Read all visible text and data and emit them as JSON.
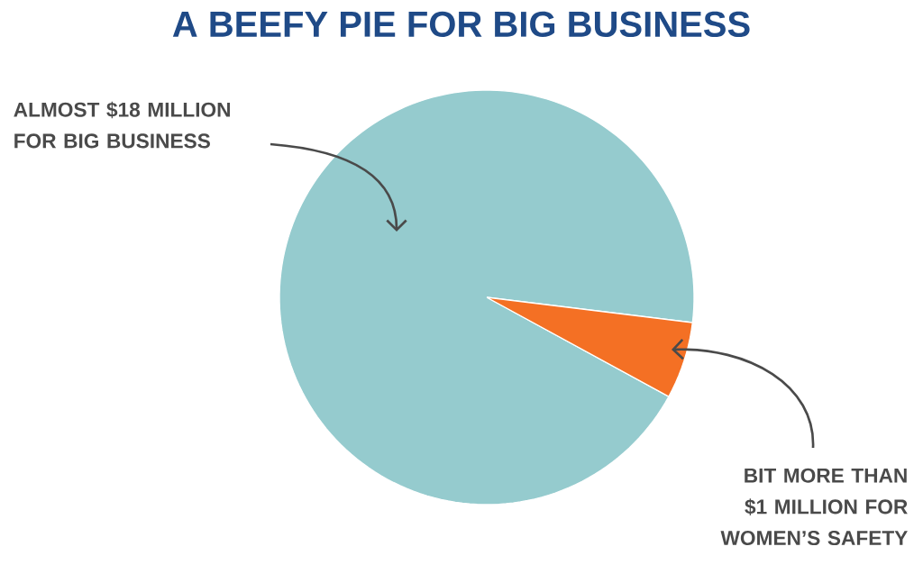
{
  "chart_data": {
    "type": "pie",
    "title": "A BEEFY PIE FOR BIG BUSINESS",
    "categories": [
      "ALMOST $18 MILLION FOR BIG BUSINESS",
      "BIT MORE THAN $1 MILLION FOR WOMEN’S SAFETY"
    ],
    "values": [
      94,
      6
    ],
    "colors": [
      "#95cbce",
      "#f47024"
    ]
  }
}
